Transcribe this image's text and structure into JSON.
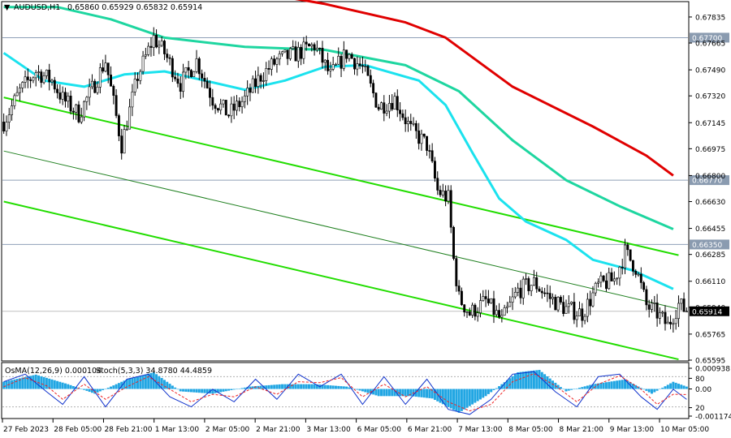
{
  "header": {
    "symbol": "AUDUSD,H1",
    "ohlc": "0.65860 0.65929 0.65832 0.65914"
  },
  "indicator_header": {
    "osma": "OsMA(12,26,9) 0.000104",
    "stoch": "Stoch(5,3,3) 34.8780 44.4859"
  },
  "colors": {
    "bull": "#ffffff",
    "bear": "#000000",
    "ma_red": "#e00000",
    "ma_green": "#1ed6a0",
    "ma_cyan": "#1be2ee",
    "channel": "#22dd00",
    "midline": "#208020",
    "osma": "#21a6e3",
    "stoch_main": "#1133cc",
    "stoch_signal": "#ee2222",
    "level_tag": "#8a9bb0"
  },
  "chart_data": [
    {
      "type": "candlestick",
      "title": "AUDUSD,H1",
      "ylim": [
        0.65595,
        0.6793
      ],
      "y_ticks": [
        "0.67835",
        "0.67665",
        "0.67490",
        "0.67320",
        "0.67145",
        "0.66975",
        "0.66800",
        "0.66630",
        "0.66455",
        "0.66285",
        "0.66110",
        "0.65940",
        "0.65765",
        "0.65595"
      ],
      "x_ticks": [
        "27 Feb 2023",
        "28 Feb 05:00",
        "28 Feb 21:00",
        "1 Mar 13:00",
        "2 Mar 05:00",
        "2 Mar 21:00",
        "3 Mar 13:00",
        "6 Mar 05:00",
        "6 Mar 21:00",
        "7 Mar 13:00",
        "8 Mar 05:00",
        "8 Mar 21:00",
        "9 Mar 13:00",
        "10 Mar 05:00"
      ],
      "price_levels": [
        {
          "label": "0.67700",
          "value": 0.677
        },
        {
          "label": "0.66770",
          "value": 0.6677
        },
        {
          "label": "0.66350",
          "value": 0.6635
        }
      ],
      "current_price": {
        "label": "0.65914",
        "value": 0.65914
      },
      "close_path": [
        [
          0,
          0.6715
        ],
        [
          6,
          0.6735
        ],
        [
          12,
          0.6748
        ],
        [
          18,
          0.6742
        ],
        [
          22,
          0.673
        ],
        [
          28,
          0.672
        ],
        [
          34,
          0.674
        ],
        [
          38,
          0.6755
        ],
        [
          44,
          0.67
        ],
        [
          50,
          0.6745
        ],
        [
          56,
          0.677
        ],
        [
          60,
          0.676
        ],
        [
          66,
          0.674
        ],
        [
          72,
          0.6755
        ],
        [
          78,
          0.673
        ],
        [
          84,
          0.672
        ],
        [
          90,
          0.673
        ],
        [
          96,
          0.6745
        ],
        [
          102,
          0.6755
        ],
        [
          110,
          0.676
        ],
        [
          116,
          0.6765
        ],
        [
          122,
          0.6745
        ],
        [
          128,
          0.676
        ],
        [
          134,
          0.675
        ],
        [
          140,
          0.6725
        ],
        [
          146,
          0.673
        ],
        [
          152,
          0.671
        ],
        [
          158,
          0.67
        ],
        [
          162,
          0.667
        ],
        [
          166,
          0.6665
        ],
        [
          168,
          0.6625
        ],
        [
          170,
          0.66
        ],
        [
          174,
          0.659
        ],
        [
          180,
          0.6598
        ],
        [
          186,
          0.6585
        ],
        [
          192,
          0.6605
        ],
        [
          198,
          0.661
        ],
        [
          204,
          0.66
        ],
        [
          210,
          0.6593
        ],
        [
          216,
          0.659
        ],
        [
          222,
          0.6608
        ],
        [
          228,
          0.6612
        ],
        [
          232,
          0.663
        ],
        [
          236,
          0.662
        ],
        [
          240,
          0.6595
        ],
        [
          244,
          0.659
        ],
        [
          248,
          0.6582
        ],
        [
          252,
          0.6596
        ],
        [
          255,
          0.65914
        ]
      ],
      "moving_averages": [
        {
          "color": "red",
          "path": [
            [
              0,
              0.6818
            ],
            [
              40,
              0.681
            ],
            [
              80,
              0.6804
            ],
            [
              120,
              0.6792
            ],
            [
              150,
              0.678
            ],
            [
              165,
              0.677
            ],
            [
              190,
              0.6738
            ],
            [
              220,
              0.6712
            ],
            [
              240,
              0.6693
            ],
            [
              250,
              0.668
            ]
          ]
        },
        {
          "color": "green",
          "path": [
            [
              0,
              0.679
            ],
            [
              20,
              0.679
            ],
            [
              40,
              0.6782
            ],
            [
              60,
              0.677
            ],
            [
              90,
              0.6764
            ],
            [
              120,
              0.6762
            ],
            [
              150,
              0.6752
            ],
            [
              170,
              0.6735
            ],
            [
              190,
              0.6703
            ],
            [
              210,
              0.6677
            ],
            [
              230,
              0.666
            ],
            [
              250,
              0.6645
            ]
          ]
        },
        {
          "color": "cyan",
          "path": [
            [
              0,
              0.676
            ],
            [
              15,
              0.6742
            ],
            [
              30,
              0.6738
            ],
            [
              45,
              0.6746
            ],
            [
              60,
              0.6748
            ],
            [
              75,
              0.6742
            ],
            [
              90,
              0.6736
            ],
            [
              105,
              0.6742
            ],
            [
              120,
              0.6751
            ],
            [
              135,
              0.6752
            ],
            [
              155,
              0.6742
            ],
            [
              165,
              0.6726
            ],
            [
              175,
              0.6695
            ],
            [
              185,
              0.6665
            ],
            [
              195,
              0.665
            ],
            [
              210,
              0.6638
            ],
            [
              220,
              0.6625
            ],
            [
              235,
              0.6618
            ],
            [
              250,
              0.6606
            ]
          ]
        }
      ],
      "channel": {
        "upper": [
          [
            0,
            0.6731
          ],
          [
            252,
            0.6628
          ]
        ],
        "middle": [
          [
            0,
            0.6696
          ],
          [
            252,
            0.6593
          ]
        ],
        "lower": [
          [
            0,
            0.6663
          ],
          [
            252,
            0.656
          ]
        ]
      }
    },
    {
      "type": "histogram+line",
      "title": "OsMA(12,26,9) / Stoch(5,3,3)",
      "osma_ylim": [
        -0.001174,
        0.000938
      ],
      "osma_ticks": [
        "0.000938",
        "0.00",
        "-0.001174"
      ],
      "stoch_ylim": [
        0,
        100
      ],
      "stoch_ticks": [
        "80",
        "20"
      ],
      "osma_path": [
        [
          0,
          0.0003
        ],
        [
          12,
          0.0006
        ],
        [
          24,
          0.0002
        ],
        [
          34,
          -0.0002
        ],
        [
          46,
          0.0004
        ],
        [
          56,
          0.0007
        ],
        [
          66,
          -0.0001
        ],
        [
          78,
          -0.0002
        ],
        [
          92,
          0.0001
        ],
        [
          104,
          0.0002
        ],
        [
          116,
          0.0002
        ],
        [
          128,
          0.0001
        ],
        [
          140,
          -0.0003
        ],
        [
          152,
          -0.0003
        ],
        [
          160,
          -0.0004
        ],
        [
          170,
          -0.001
        ],
        [
          180,
          -0.0003
        ],
        [
          192,
          0.0007
        ],
        [
          200,
          0.0008
        ],
        [
          210,
          -0.0001
        ],
        [
          220,
          0.0002
        ],
        [
          232,
          0.0004
        ],
        [
          242,
          -0.0002
        ],
        [
          250,
          0.0003
        ],
        [
          255,
          0.0001
        ]
      ],
      "stoch_main_path": [
        [
          0,
          70
        ],
        [
          8,
          85
        ],
        [
          16,
          50
        ],
        [
          22,
          25
        ],
        [
          30,
          80
        ],
        [
          38,
          20
        ],
        [
          46,
          75
        ],
        [
          54,
          85
        ],
        [
          62,
          40
        ],
        [
          70,
          20
        ],
        [
          78,
          55
        ],
        [
          86,
          30
        ],
        [
          94,
          75
        ],
        [
          102,
          35
        ],
        [
          110,
          85
        ],
        [
          118,
          60
        ],
        [
          126,
          85
        ],
        [
          134,
          25
        ],
        [
          142,
          80
        ],
        [
          150,
          25
        ],
        [
          158,
          75
        ],
        [
          166,
          15
        ],
        [
          174,
          5
        ],
        [
          182,
          35
        ],
        [
          190,
          85
        ],
        [
          198,
          90
        ],
        [
          206,
          50
        ],
        [
          214,
          20
        ],
        [
          222,
          80
        ],
        [
          230,
          85
        ],
        [
          238,
          40
        ],
        [
          244,
          15
        ],
        [
          250,
          55
        ],
        [
          255,
          34.9
        ]
      ],
      "stoch_signal_path": [
        [
          0,
          60
        ],
        [
          8,
          78
        ],
        [
          16,
          62
        ],
        [
          22,
          35
        ],
        [
          30,
          65
        ],
        [
          38,
          35
        ],
        [
          46,
          60
        ],
        [
          54,
          80
        ],
        [
          62,
          55
        ],
        [
          70,
          30
        ],
        [
          78,
          45
        ],
        [
          86,
          40
        ],
        [
          94,
          60
        ],
        [
          102,
          45
        ],
        [
          110,
          70
        ],
        [
          118,
          68
        ],
        [
          126,
          78
        ],
        [
          134,
          40
        ],
        [
          142,
          65
        ],
        [
          150,
          40
        ],
        [
          158,
          60
        ],
        [
          166,
          30
        ],
        [
          174,
          12
        ],
        [
          182,
          25
        ],
        [
          190,
          70
        ],
        [
          198,
          86
        ],
        [
          206,
          62
        ],
        [
          214,
          30
        ],
        [
          222,
          65
        ],
        [
          230,
          82
        ],
        [
          238,
          55
        ],
        [
          244,
          25
        ],
        [
          250,
          45
        ],
        [
          255,
          44.5
        ]
      ]
    }
  ]
}
